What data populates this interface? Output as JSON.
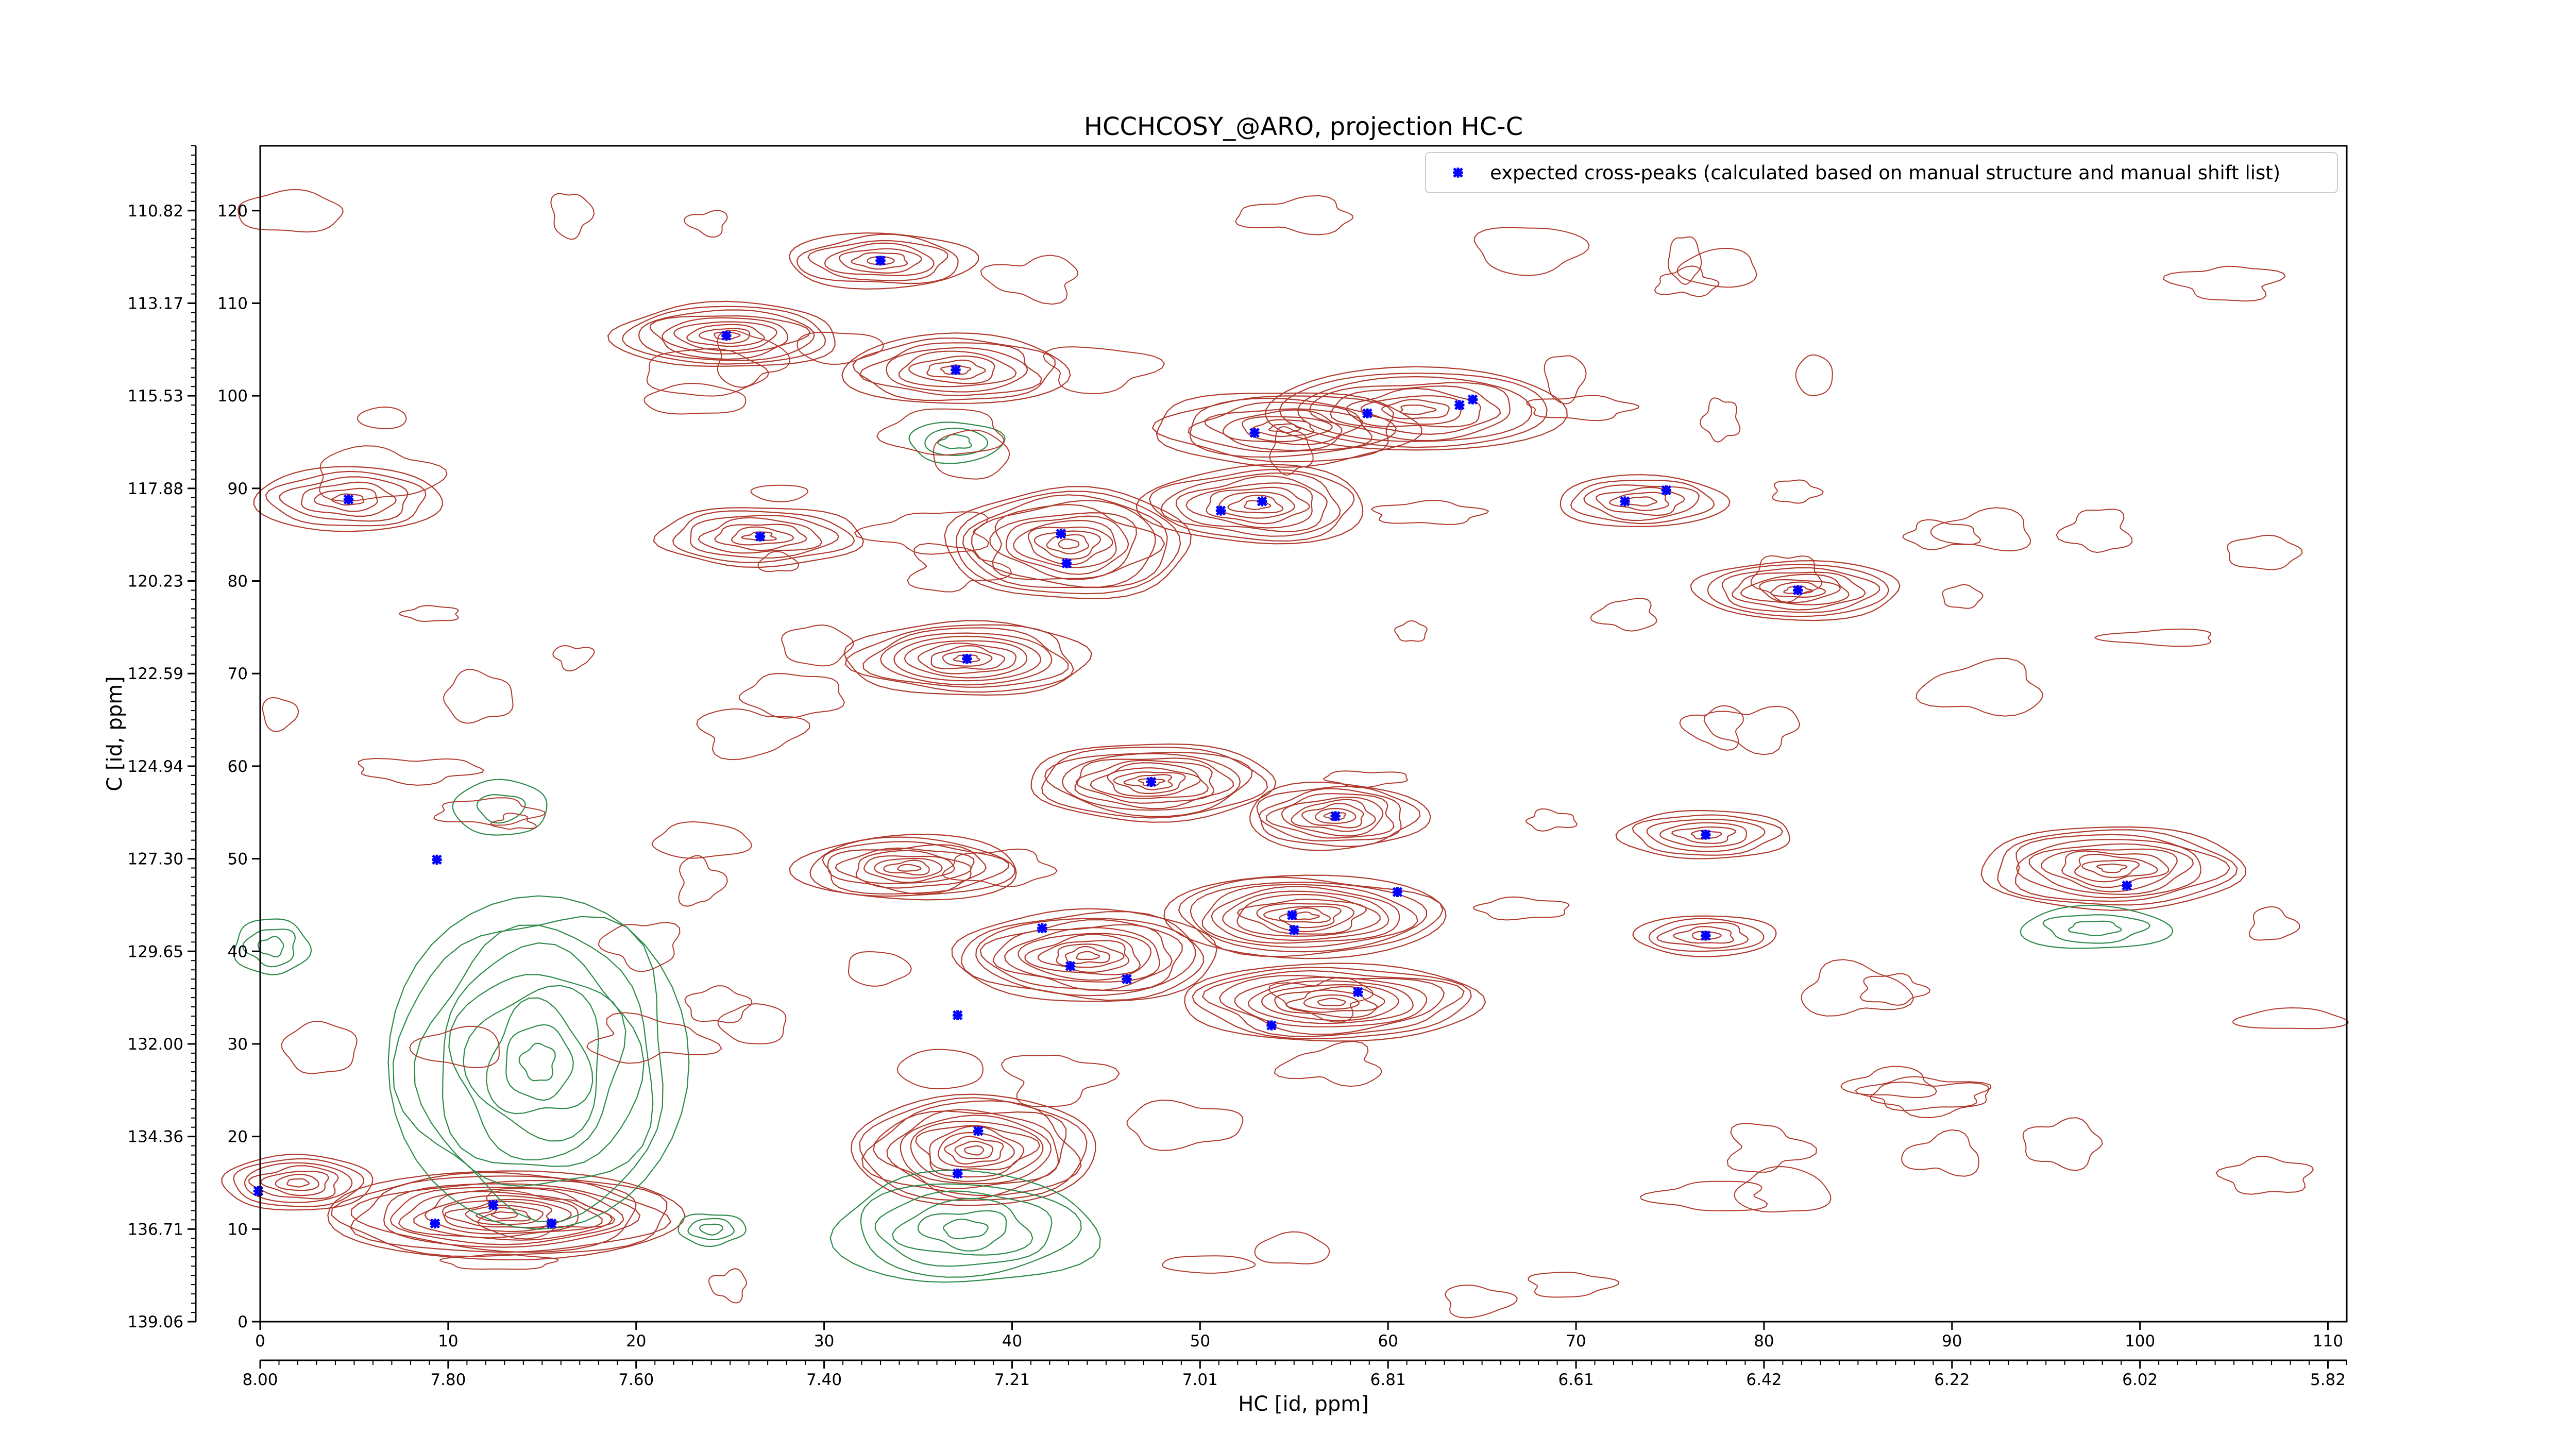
{
  "chart_data": {
    "type": "scatter",
    "title": "HCCHCOSY_@ARO, projection HC-C",
    "xlabel": "HC [id, ppm]",
    "ylabel": "C [id, ppm]",
    "xlim": [
      0,
      111
    ],
    "ylim": [
      0,
      127
    ],
    "x_ticks": [
      0,
      10,
      20,
      30,
      40,
      50,
      60,
      70,
      80,
      90,
      100,
      110
    ],
    "x_ticks_ppm": [
      "8.00",
      "7.80",
      "7.60",
      "7.40",
      "7.21",
      "7.01",
      "6.81",
      "6.61",
      "6.42",
      "6.22",
      "6.02",
      "5.82"
    ],
    "y_ticks": [
      0,
      10,
      20,
      30,
      40,
      50,
      60,
      70,
      80,
      90,
      100,
      110,
      120
    ],
    "y_ticks_ppm": [
      "139.06",
      "136.71",
      "134.36",
      "132.00",
      "129.65",
      "127.30",
      "124.94",
      "122.59",
      "120.23",
      "117.88",
      "115.53",
      "113.17",
      "110.82"
    ],
    "grid": false,
    "legend_position": "top-right",
    "series": [
      {
        "name": "expected cross-peaks (calculated based on manual structure and manual shift list)",
        "marker": "x",
        "color": "#0000ff",
        "x": [
          4.7,
          24.8,
          33.0,
          37.0,
          26.6,
          42.6,
          42.9,
          37.6,
          9.4,
          12.4,
          15.5,
          9.3,
          37.1,
          38.2,
          37.1,
          47.4,
          52.9,
          58.9,
          63.8,
          64.5,
          51.1,
          53.3,
          72.6,
          74.8,
          81.8,
          57.2,
          76.9,
          60.5,
          54.9,
          55.0,
          41.6,
          43.1,
          46.1,
          58.4,
          53.8,
          76.9,
          99.3,
          -0.1
        ],
        "y": [
          88.8,
          106.5,
          114.6,
          102.8,
          84.8,
          85.1,
          81.9,
          71.6,
          49.9,
          12.6,
          10.6,
          10.6,
          16.0,
          20.6,
          33.1,
          58.3,
          96.0,
          98.1,
          99.0,
          99.6,
          87.6,
          88.6,
          88.6,
          89.8,
          79.0,
          54.6,
          52.6,
          46.4,
          43.9,
          42.3,
          42.5,
          38.4,
          37.0,
          35.6,
          32.0,
          41.7,
          47.1,
          14.1
        ]
      }
    ],
    "contours": {
      "positive_color": "#b03a2e",
      "negative_color": "#2e8b4a"
    }
  }
}
